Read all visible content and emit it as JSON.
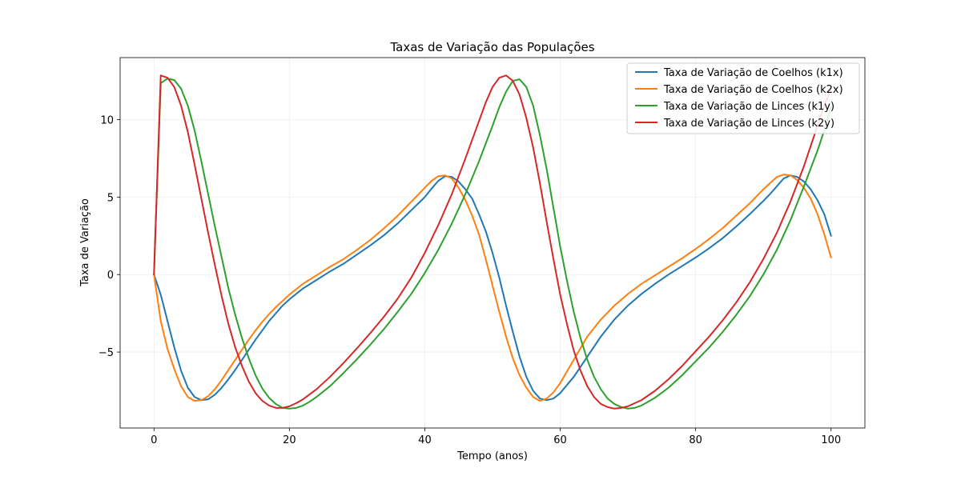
{
  "chart_data": {
    "type": "line",
    "title": "Taxas de Variação das Populações",
    "xlabel": "Tempo (anos)",
    "ylabel": "Taxa de Variação",
    "xlim": [
      -5,
      105
    ],
    "ylim": [
      -9.9,
      14.0
    ],
    "xticks": [
      0,
      20,
      40,
      60,
      80,
      100
    ],
    "yticks": [
      -5,
      0,
      5,
      10
    ],
    "ytick_labels": [
      "−5",
      "0",
      "5",
      "10"
    ],
    "grid": true,
    "legend_position": "top-right",
    "series": [
      {
        "name": "Taxa de Variação de Coelhos (k1x)",
        "color": "#1f77b4",
        "points": [
          [
            0,
            0
          ],
          [
            1,
            -1.3
          ],
          [
            2,
            -3.0
          ],
          [
            3,
            -4.7
          ],
          [
            4,
            -6.2
          ],
          [
            5,
            -7.3
          ],
          [
            6,
            -7.9
          ],
          [
            7,
            -8.1
          ],
          [
            8,
            -8.05
          ],
          [
            9,
            -7.75
          ],
          [
            10,
            -7.3
          ],
          [
            11,
            -6.75
          ],
          [
            12,
            -6.15
          ],
          [
            13,
            -5.5
          ],
          [
            14,
            -4.85
          ],
          [
            15,
            -4.2
          ],
          [
            16,
            -3.6
          ],
          [
            17,
            -3.0
          ],
          [
            18,
            -2.5
          ],
          [
            19,
            -2.0
          ],
          [
            20,
            -1.6
          ],
          [
            22,
            -0.9
          ],
          [
            24,
            -0.35
          ],
          [
            26,
            0.2
          ],
          [
            28,
            0.7
          ],
          [
            30,
            1.3
          ],
          [
            32,
            1.9
          ],
          [
            34,
            2.55
          ],
          [
            36,
            3.3
          ],
          [
            38,
            4.15
          ],
          [
            40,
            5.0
          ],
          [
            41,
            5.55
          ],
          [
            42,
            6.05
          ],
          [
            43,
            6.35
          ],
          [
            44,
            6.3
          ],
          [
            45,
            6.0
          ],
          [
            46,
            5.5
          ],
          [
            47,
            4.9
          ],
          [
            48,
            3.9
          ],
          [
            49,
            2.8
          ],
          [
            50,
            1.4
          ],
          [
            51,
            -0.2
          ],
          [
            52,
            -2.0
          ],
          [
            53,
            -3.7
          ],
          [
            54,
            -5.3
          ],
          [
            55,
            -6.6
          ],
          [
            56,
            -7.5
          ],
          [
            57,
            -8.0
          ],
          [
            58,
            -8.1
          ],
          [
            59,
            -8.0
          ],
          [
            60,
            -7.65
          ],
          [
            62,
            -6.6
          ],
          [
            64,
            -5.3
          ],
          [
            66,
            -4.0
          ],
          [
            68,
            -2.9
          ],
          [
            70,
            -2.0
          ],
          [
            72,
            -1.25
          ],
          [
            74,
            -0.6
          ],
          [
            76,
            0.0
          ],
          [
            78,
            0.55
          ],
          [
            80,
            1.1
          ],
          [
            82,
            1.7
          ],
          [
            84,
            2.35
          ],
          [
            86,
            3.1
          ],
          [
            88,
            3.9
          ],
          [
            90,
            4.75
          ],
          [
            91,
            5.2
          ],
          [
            92,
            5.7
          ],
          [
            93,
            6.2
          ],
          [
            94,
            6.4
          ],
          [
            95,
            6.3
          ],
          [
            96,
            6.0
          ],
          [
            97,
            5.5
          ],
          [
            98,
            4.8
          ],
          [
            99,
            3.9
          ],
          [
            100,
            2.5
          ]
        ]
      },
      {
        "name": "Taxa de Variação de Coelhos (k2x)",
        "color": "#ff7f0e",
        "points": [
          [
            0,
            0
          ],
          [
            1,
            -3.0
          ],
          [
            2,
            -4.8
          ],
          [
            3,
            -6.1
          ],
          [
            4,
            -7.2
          ],
          [
            5,
            -7.9
          ],
          [
            6,
            -8.15
          ],
          [
            7,
            -8.1
          ],
          [
            8,
            -7.85
          ],
          [
            9,
            -7.4
          ],
          [
            10,
            -6.8
          ],
          [
            11,
            -6.15
          ],
          [
            12,
            -5.5
          ],
          [
            13,
            -4.85
          ],
          [
            14,
            -4.2
          ],
          [
            15,
            -3.6
          ],
          [
            16,
            -3.05
          ],
          [
            17,
            -2.55
          ],
          [
            18,
            -2.1
          ],
          [
            19,
            -1.7
          ],
          [
            20,
            -1.3
          ],
          [
            22,
            -0.6
          ],
          [
            24,
            -0.05
          ],
          [
            26,
            0.5
          ],
          [
            28,
            1.0
          ],
          [
            30,
            1.6
          ],
          [
            32,
            2.25
          ],
          [
            34,
            3.0
          ],
          [
            36,
            3.8
          ],
          [
            38,
            4.7
          ],
          [
            40,
            5.6
          ],
          [
            41,
            6.05
          ],
          [
            42,
            6.35
          ],
          [
            43,
            6.4
          ],
          [
            44,
            6.2
          ],
          [
            45,
            5.6
          ],
          [
            46,
            4.8
          ],
          [
            47,
            3.8
          ],
          [
            48,
            2.6
          ],
          [
            49,
            1.0
          ],
          [
            50,
            -0.7
          ],
          [
            51,
            -2.4
          ],
          [
            52,
            -4.0
          ],
          [
            53,
            -5.4
          ],
          [
            54,
            -6.5
          ],
          [
            55,
            -7.3
          ],
          [
            56,
            -7.9
          ],
          [
            57,
            -8.15
          ],
          [
            58,
            -8.0
          ],
          [
            59,
            -7.6
          ],
          [
            60,
            -7.0
          ],
          [
            62,
            -5.5
          ],
          [
            64,
            -4.0
          ],
          [
            66,
            -2.9
          ],
          [
            68,
            -2.0
          ],
          [
            70,
            -1.25
          ],
          [
            72,
            -0.6
          ],
          [
            74,
            -0.05
          ],
          [
            76,
            0.5
          ],
          [
            78,
            1.05
          ],
          [
            80,
            1.65
          ],
          [
            82,
            2.3
          ],
          [
            84,
            3.0
          ],
          [
            86,
            3.8
          ],
          [
            88,
            4.6
          ],
          [
            90,
            5.5
          ],
          [
            91,
            5.9
          ],
          [
            92,
            6.3
          ],
          [
            93,
            6.45
          ],
          [
            94,
            6.4
          ],
          [
            95,
            6.1
          ],
          [
            96,
            5.6
          ],
          [
            97,
            4.9
          ],
          [
            98,
            3.9
          ],
          [
            99,
            2.6
          ],
          [
            100,
            1.1
          ]
        ]
      },
      {
        "name": "Taxa de Variação de Linces (k1y)",
        "color": "#2ca02c",
        "points": [
          [
            0,
            0
          ],
          [
            1,
            12.35
          ],
          [
            2,
            12.65
          ],
          [
            3,
            12.55
          ],
          [
            4,
            12.0
          ],
          [
            5,
            10.9
          ],
          [
            6,
            9.3
          ],
          [
            7,
            7.3
          ],
          [
            8,
            5.2
          ],
          [
            9,
            3.1
          ],
          [
            10,
            1.1
          ],
          [
            11,
            -0.9
          ],
          [
            12,
            -2.6
          ],
          [
            13,
            -4.1
          ],
          [
            14,
            -5.4
          ],
          [
            15,
            -6.5
          ],
          [
            16,
            -7.35
          ],
          [
            17,
            -7.95
          ],
          [
            18,
            -8.35
          ],
          [
            19,
            -8.6
          ],
          [
            20,
            -8.65
          ],
          [
            21,
            -8.6
          ],
          [
            22,
            -8.45
          ],
          [
            23,
            -8.2
          ],
          [
            24,
            -7.9
          ],
          [
            26,
            -7.2
          ],
          [
            28,
            -6.35
          ],
          [
            30,
            -5.45
          ],
          [
            32,
            -4.5
          ],
          [
            34,
            -3.5
          ],
          [
            36,
            -2.4
          ],
          [
            38,
            -1.25
          ],
          [
            40,
            0.1
          ],
          [
            42,
            1.6
          ],
          [
            44,
            3.3
          ],
          [
            46,
            5.2
          ],
          [
            48,
            7.3
          ],
          [
            50,
            9.6
          ],
          [
            51,
            10.8
          ],
          [
            52,
            11.8
          ],
          [
            53,
            12.5
          ],
          [
            54,
            12.6
          ],
          [
            55,
            12.1
          ],
          [
            56,
            10.9
          ],
          [
            57,
            9.0
          ],
          [
            58,
            6.8
          ],
          [
            59,
            4.3
          ],
          [
            60,
            1.8
          ],
          [
            61,
            -0.4
          ],
          [
            62,
            -2.4
          ],
          [
            63,
            -4.1
          ],
          [
            64,
            -5.5
          ],
          [
            65,
            -6.6
          ],
          [
            66,
            -7.4
          ],
          [
            67,
            -8.0
          ],
          [
            68,
            -8.35
          ],
          [
            69,
            -8.55
          ],
          [
            70,
            -8.65
          ],
          [
            71,
            -8.6
          ],
          [
            72,
            -8.45
          ],
          [
            74,
            -7.95
          ],
          [
            76,
            -7.3
          ],
          [
            78,
            -6.5
          ],
          [
            80,
            -5.6
          ],
          [
            82,
            -4.7
          ],
          [
            84,
            -3.7
          ],
          [
            86,
            -2.6
          ],
          [
            88,
            -1.4
          ],
          [
            90,
            0.0
          ],
          [
            92,
            1.6
          ],
          [
            94,
            3.5
          ],
          [
            96,
            5.7
          ],
          [
            98,
            8.0
          ],
          [
            99,
            9.3
          ],
          [
            100,
            10.8
          ]
        ]
      },
      {
        "name": "Taxa de Variação de Linces (k2y)",
        "color": "#d62728",
        "points": [
          [
            0,
            0
          ],
          [
            1,
            12.85
          ],
          [
            2,
            12.7
          ],
          [
            3,
            12.1
          ],
          [
            4,
            10.9
          ],
          [
            5,
            9.2
          ],
          [
            6,
            7.1
          ],
          [
            7,
            4.9
          ],
          [
            8,
            2.7
          ],
          [
            9,
            0.6
          ],
          [
            10,
            -1.4
          ],
          [
            11,
            -3.2
          ],
          [
            12,
            -4.7
          ],
          [
            13,
            -5.9
          ],
          [
            14,
            -6.9
          ],
          [
            15,
            -7.65
          ],
          [
            16,
            -8.15
          ],
          [
            17,
            -8.45
          ],
          [
            18,
            -8.6
          ],
          [
            19,
            -8.6
          ],
          [
            20,
            -8.5
          ],
          [
            21,
            -8.3
          ],
          [
            22,
            -8.05
          ],
          [
            24,
            -7.4
          ],
          [
            26,
            -6.6
          ],
          [
            28,
            -5.7
          ],
          [
            30,
            -4.75
          ],
          [
            32,
            -3.75
          ],
          [
            34,
            -2.7
          ],
          [
            36,
            -1.55
          ],
          [
            38,
            -0.2
          ],
          [
            40,
            1.4
          ],
          [
            42,
            3.2
          ],
          [
            44,
            5.2
          ],
          [
            46,
            7.5
          ],
          [
            48,
            9.9
          ],
          [
            49,
            11.1
          ],
          [
            50,
            12.1
          ],
          [
            51,
            12.7
          ],
          [
            52,
            12.85
          ],
          [
            53,
            12.5
          ],
          [
            54,
            11.6
          ],
          [
            55,
            10.1
          ],
          [
            56,
            8.2
          ],
          [
            57,
            5.9
          ],
          [
            58,
            3.4
          ],
          [
            59,
            1.0
          ],
          [
            60,
            -1.3
          ],
          [
            61,
            -3.2
          ],
          [
            62,
            -4.9
          ],
          [
            63,
            -6.2
          ],
          [
            64,
            -7.2
          ],
          [
            65,
            -7.9
          ],
          [
            66,
            -8.35
          ],
          [
            67,
            -8.55
          ],
          [
            68,
            -8.65
          ],
          [
            69,
            -8.6
          ],
          [
            70,
            -8.5
          ],
          [
            72,
            -8.1
          ],
          [
            74,
            -7.5
          ],
          [
            76,
            -6.75
          ],
          [
            78,
            -5.9
          ],
          [
            80,
            -4.95
          ],
          [
            82,
            -4.0
          ],
          [
            84,
            -2.95
          ],
          [
            86,
            -1.8
          ],
          [
            88,
            -0.5
          ],
          [
            90,
            1.0
          ],
          [
            92,
            2.7
          ],
          [
            94,
            4.7
          ],
          [
            96,
            7.0
          ],
          [
            98,
            9.6
          ],
          [
            99,
            10.9
          ],
          [
            100,
            12.0
          ]
        ]
      }
    ]
  }
}
